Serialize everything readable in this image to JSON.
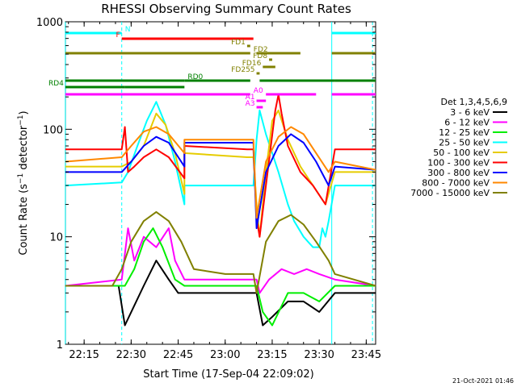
{
  "chart_data": {
    "type": "line",
    "title": "RHESSI Observing Summary Count Rates",
    "xlabel": "Start Time (17-Sep-04 22:09:02)",
    "ylabel": "Count Rate (s⁻¹ detector⁻¹)",
    "ylabel_parts": [
      "Count Rate (s",
      "−1",
      " detector",
      "−1",
      ")"
    ],
    "footer": "21-Oct-2021 01:46",
    "y_scale": "log",
    "ylim": [
      1,
      1000
    ],
    "xlim": [
      "22:09:02",
      "23:48:00"
    ],
    "x_ticks": [
      "22:15",
      "22:30",
      "22:45",
      "23:00",
      "23:15",
      "23:30",
      "23:45"
    ],
    "y_ticks": [
      {
        "value": 1,
        "label": "1"
      },
      {
        "value": 10,
        "label": "10"
      },
      {
        "value": 100,
        "label": "100"
      },
      {
        "value": 1000,
        "label": "1000"
      }
    ],
    "legend": {
      "placement": "right",
      "title": "Det 1,3,4,5,6,9",
      "entries": [
        {
          "label": "3 - 6 keV",
          "color": "#000000"
        },
        {
          "label": "6 - 12 keV",
          "color": "#ff00ff"
        },
        {
          "label": "12 - 25 keV",
          "color": "#00ee00"
        },
        {
          "label": "25 - 50 keV",
          "color": "#00ffff"
        },
        {
          "label": "50 - 100 keV",
          "color": "#e6cc00"
        },
        {
          "label": "100 - 300 keV",
          "color": "#ff0000"
        },
        {
          "label": "300 - 800 keV",
          "color": "#0000ff"
        },
        {
          "label": "800 - 7000 keV",
          "color": "#ff8800"
        },
        {
          "label": "7000 - 15000 keV",
          "color": "#808000"
        }
      ]
    },
    "flag_bars": [
      {
        "label": "N",
        "color": "#00ffff",
        "segments": [
          [
            "22:09",
            "22:27"
          ],
          [
            "23:34",
            "23:48"
          ]
        ]
      },
      {
        "label": "F",
        "color": "#ff0000",
        "segments": [
          [
            "22:27",
            "23:09"
          ]
        ]
      },
      {
        "label": "FD1",
        "color": "#808000",
        "segments": [
          [
            "23:07",
            "23:08"
          ]
        ]
      },
      {
        "label": "FD2",
        "color": "#808000",
        "segments": [
          [
            "22:09",
            "23:08"
          ],
          [
            "23:10",
            "23:24"
          ],
          [
            "23:34",
            "23:48"
          ]
        ]
      },
      {
        "label": "FD8",
        "color": "#808000",
        "segments": [
          [
            "23:14",
            "23:15"
          ]
        ]
      },
      {
        "label": "FD16",
        "color": "#808000",
        "segments": [
          [
            "23:12",
            "23:16"
          ]
        ]
      },
      {
        "label": "FD255",
        "color": "#808000",
        "segments": [
          [
            "23:10",
            "23:11"
          ]
        ]
      },
      {
        "label": "RD0",
        "color": "#008000",
        "segments": [
          [
            "22:09",
            "22:47"
          ],
          [
            "22:47",
            "23:08"
          ],
          [
            "23:11",
            "23:35"
          ],
          [
            "23:35",
            "23:48"
          ]
        ]
      },
      {
        "label": "RD4",
        "color": "#008000",
        "segments": [
          [
            "22:09",
            "22:28"
          ],
          [
            "22:28",
            "22:47"
          ]
        ]
      },
      {
        "label": "A0",
        "color": "#ff00ff",
        "segments": [
          [
            "22:09",
            "23:08"
          ],
          [
            "23:13",
            "23:29"
          ],
          [
            "23:34",
            "23:48"
          ]
        ]
      },
      {
        "label": "A1",
        "color": "#ff00ff",
        "segments": [
          [
            "23:10",
            "23:13"
          ]
        ]
      },
      {
        "label": "A3",
        "color": "#ff00ff",
        "segments": [
          [
            "23:10",
            "23:12"
          ]
        ]
      }
    ],
    "series": [
      {
        "name": "3 - 6 keV",
        "color": "#000000",
        "x": [
          "22:09",
          "22:26",
          "22:28",
          "22:34",
          "22:38",
          "22:42",
          "22:45",
          "22:47",
          "23:07",
          "23:09",
          "23:10",
          "23:12",
          "23:15",
          "23:20",
          "23:25",
          "23:30",
          "23:35",
          "23:48"
        ],
        "y": [
          3.5,
          3.5,
          1.5,
          3.5,
          6,
          4,
          3,
          3,
          3,
          3,
          3,
          1.5,
          1.8,
          2.5,
          2.5,
          2,
          3,
          3
        ]
      },
      {
        "name": "6 - 12 keV",
        "color": "#ff00ff",
        "x": [
          "22:09",
          "22:27",
          "22:29",
          "22:31",
          "22:34",
          "22:38",
          "22:42",
          "22:44",
          "22:47",
          "23:07",
          "23:10",
          "23:11",
          "23:14",
          "23:18",
          "23:22",
          "23:26",
          "23:30",
          "23:35",
          "23:48"
        ],
        "y": [
          3.5,
          4,
          12,
          6,
          10,
          8,
          12,
          6,
          4,
          4,
          4,
          3,
          4,
          5,
          4.5,
          5,
          4.5,
          4,
          3.5
        ]
      },
      {
        "name": "12 - 25 keV",
        "color": "#00ee00",
        "x": [
          "22:09",
          "22:28",
          "22:31",
          "22:34",
          "22:37",
          "22:40",
          "22:44",
          "22:47",
          "23:07",
          "23:10",
          "23:12",
          "23:15",
          "23:20",
          "23:25",
          "23:30",
          "23:35",
          "23:48"
        ],
        "y": [
          3.5,
          3.5,
          5,
          9,
          12,
          8,
          4,
          3.5,
          3.5,
          3.5,
          2,
          1.5,
          3,
          3,
          2.5,
          3.5,
          3.5
        ]
      },
      {
        "name": "25 - 50 keV",
        "color": "#00ffff",
        "x": [
          "22:09",
          "22:27",
          "22:29",
          "22:32",
          "22:35",
          "22:38",
          "22:41",
          "22:44",
          "22:47",
          "22:47",
          "23:07",
          "23:09",
          "23:10",
          "23:11",
          "23:13",
          "23:15",
          "23:17",
          "23:20",
          "23:22",
          "23:25",
          "23:28",
          "23:30",
          "23:31",
          "23:32",
          "23:33",
          "23:35",
          "23:48"
        ],
        "y": [
          30,
          32,
          40,
          70,
          120,
          180,
          110,
          50,
          20,
          30,
          30,
          30,
          80,
          150,
          90,
          60,
          40,
          20,
          14,
          10,
          8,
          8,
          12,
          10,
          14,
          30,
          30
        ]
      },
      {
        "name": "50 - 100 keV",
        "color": "#e6cc00",
        "x": [
          "22:09",
          "22:27",
          "22:30",
          "22:34",
          "22:38",
          "22:41",
          "22:44",
          "22:47",
          "22:47",
          "23:07",
          "23:09",
          "23:10",
          "23:11",
          "23:13",
          "23:15",
          "23:17",
          "23:20",
          "23:24",
          "23:28",
          "23:32",
          "23:35",
          "23:48"
        ],
        "y": [
          45,
          45,
          50,
          70,
          140,
          110,
          60,
          25,
          60,
          55,
          55,
          20,
          10,
          40,
          120,
          150,
          80,
          45,
          30,
          20,
          40,
          40
        ]
      },
      {
        "name": "100 - 300 keV",
        "color": "#ff0000",
        "x": [
          "22:09",
          "22:27",
          "22:28",
          "22:29",
          "22:31",
          "22:34",
          "22:38",
          "22:42",
          "22:47",
          "22:47",
          "23:07",
          "23:09",
          "23:10",
          "23:11",
          "23:13",
          "23:16",
          "23:17",
          "23:18",
          "23:20",
          "23:24",
          "23:28",
          "23:32",
          "23:35",
          "23:48"
        ],
        "y": [
          65,
          65,
          105,
          40,
          45,
          55,
          65,
          55,
          35,
          70,
          65,
          65,
          15,
          10,
          30,
          150,
          210,
          140,
          70,
          40,
          30,
          20,
          65,
          65
        ]
      },
      {
        "name": "300 - 800 keV",
        "color": "#0000ff",
        "x": [
          "22:09",
          "22:27",
          "22:30",
          "22:34",
          "22:38",
          "22:42",
          "22:47",
          "22:47",
          "23:07",
          "23:09",
          "23:10",
          "23:13",
          "23:17",
          "23:21",
          "23:25",
          "23:29",
          "23:33",
          "23:35",
          "23:48"
        ],
        "y": [
          40,
          40,
          50,
          70,
          85,
          75,
          45,
          75,
          75,
          75,
          12,
          40,
          70,
          90,
          75,
          50,
          30,
          45,
          42
        ]
      },
      {
        "name": "800 - 7000 keV",
        "color": "#ff8800",
        "x": [
          "22:09",
          "22:27",
          "22:30",
          "22:34",
          "22:38",
          "22:42",
          "22:47",
          "22:47",
          "23:07",
          "23:09",
          "23:10",
          "23:13",
          "23:17",
          "23:21",
          "23:25",
          "23:29",
          "23:33",
          "23:35",
          "23:48"
        ],
        "y": [
          50,
          55,
          70,
          95,
          105,
          90,
          60,
          80,
          80,
          80,
          15,
          50,
          85,
          105,
          90,
          60,
          40,
          50,
          42
        ]
      },
      {
        "name": "7000 - 15000 keV",
        "color": "#808000",
        "x": [
          "22:09",
          "22:24",
          "22:27",
          "22:30",
          "22:34",
          "22:38",
          "22:42",
          "22:46",
          "22:50",
          "23:00",
          "23:07",
          "23:09",
          "23:10",
          "23:13",
          "23:17",
          "23:21",
          "23:25",
          "23:29",
          "23:33",
          "23:35",
          "23:48"
        ],
        "y": [
          3.5,
          3.5,
          5,
          9,
          14,
          17,
          14,
          9,
          5,
          4.5,
          4.5,
          4.5,
          3,
          9,
          14,
          16,
          13,
          9,
          6,
          4.5,
          3.5
        ]
      }
    ],
    "vertical_markers": [
      {
        "x": "22:09",
        "style": "solid",
        "color": "#00ffff"
      },
      {
        "x": "22:27",
        "style": "dashed",
        "color": "#00ffff"
      },
      {
        "x": "23:34",
        "style": "solid",
        "color": "#00ffff"
      },
      {
        "x": "23:47",
        "style": "dashed",
        "color": "#00ffff"
      }
    ]
  }
}
